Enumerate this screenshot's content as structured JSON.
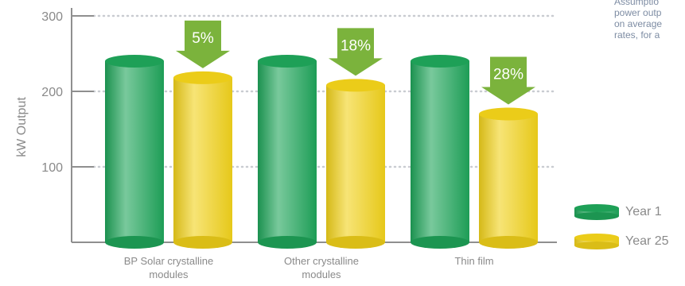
{
  "chart_data": {
    "type": "bar",
    "ylabel": "kW Output",
    "xlabel": "",
    "ylim": [
      0,
      300
    ],
    "yticks": [
      100,
      200,
      300
    ],
    "grid": true,
    "categories": [
      "BP Solar crystalline modules",
      "Other crystalline modules",
      "Thin film"
    ],
    "category_lines": [
      [
        "BP Solar crystalline",
        "modules"
      ],
      [
        "Other crystalline",
        "modules"
      ],
      [
        "Thin film"
      ]
    ],
    "series": [
      {
        "name": "Year 1",
        "values": [
          240,
          240,
          240
        ],
        "color": "#1fa55a"
      },
      {
        "name": "Year 25",
        "values": [
          218,
          208,
          170
        ],
        "color": "#f2d21a"
      }
    ],
    "annotations": [
      "5%",
      "18%",
      "28%"
    ],
    "annotation_color": "#7bb33c",
    "legend_position": "bottom-right"
  },
  "note_lines": [
    "Assumptio",
    "power outp",
    "on average",
    "rates, for a"
  ]
}
